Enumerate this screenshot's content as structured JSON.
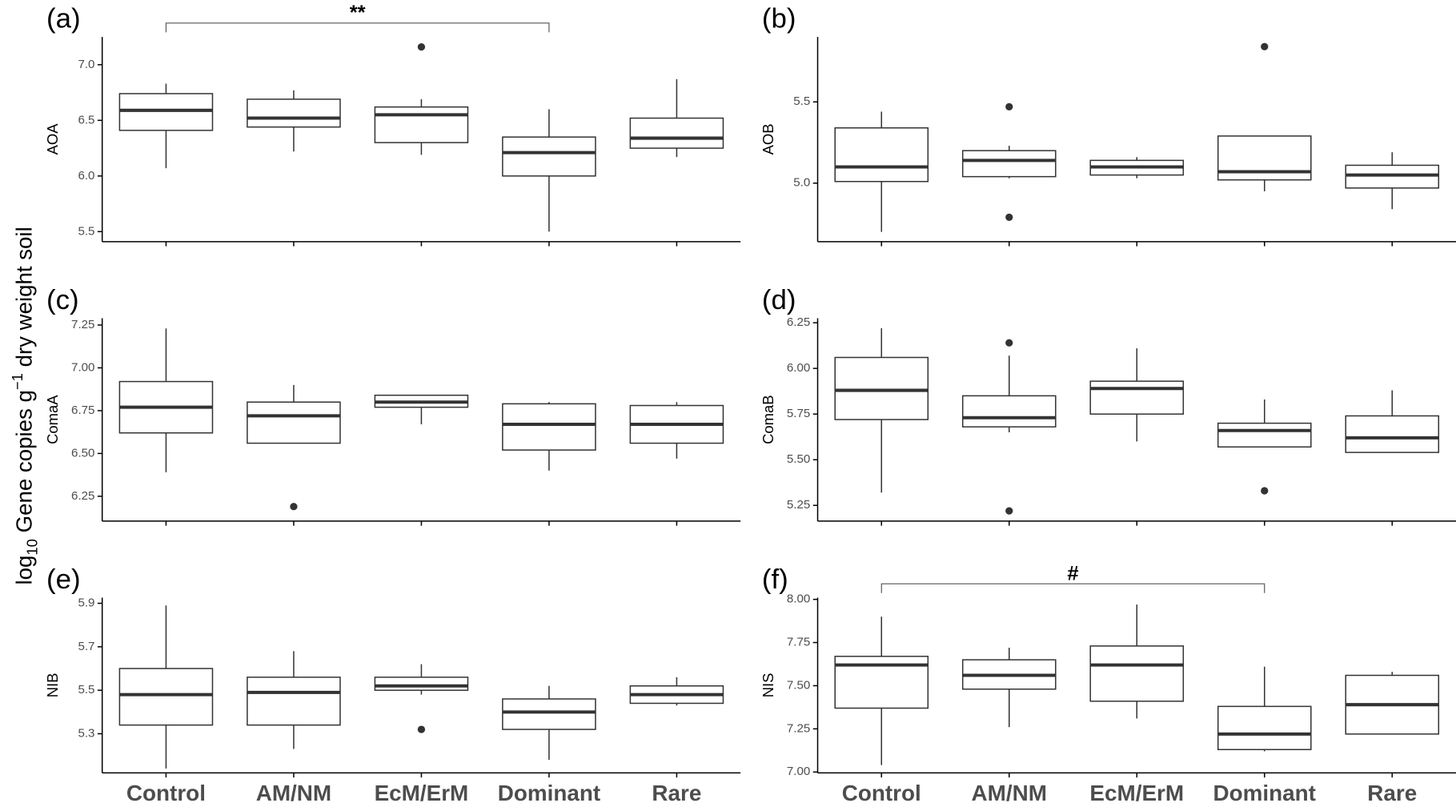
{
  "y_label": {
    "log": "log",
    "sub": "10",
    "main": " Gene copies g",
    "sup": "−1",
    "rest": " dry weight soil"
  },
  "chart_data": [
    {
      "type": "box",
      "panel_label": "(a)",
      "y_label": "AOA",
      "ylim": [
        5.41,
        7.25
      ],
      "yticks": [
        5.5,
        {
          "value": 6.0,
          "label": "6.0"
        },
        6.5,
        {
          "value": 7.0,
          "label": "7.0"
        }
      ],
      "annotation": {
        "text": "**",
        "between": [
          0,
          3
        ]
      },
      "boxes": [
        {
          "whislo": 6.07,
          "q1": 6.41,
          "med": 6.59,
          "q3": 6.74,
          "whishi": 6.83,
          "outliers": []
        },
        {
          "whislo": 6.22,
          "q1": 6.44,
          "med": 6.52,
          "q3": 6.69,
          "whishi": 6.77,
          "outliers": []
        },
        {
          "whislo": 6.19,
          "q1": 6.3,
          "med": 6.55,
          "q3": 6.62,
          "whishi": 6.69,
          "outliers": [
            7.16
          ]
        },
        {
          "whislo": 5.5,
          "q1": 6.0,
          "med": 6.21,
          "q3": 6.35,
          "whishi": 6.6,
          "outliers": []
        },
        {
          "whislo": 6.17,
          "q1": 6.25,
          "med": 6.34,
          "q3": 6.52,
          "whishi": 6.87,
          "outliers": []
        }
      ]
    },
    {
      "type": "box",
      "panel_label": "(b)",
      "y_label": "AOB",
      "ylim": [
        4.64,
        5.9
      ],
      "yticks": [
        {
          "value": 5.0,
          "label": "5.0"
        },
        5.5
      ],
      "boxes": [
        {
          "whislo": 4.7,
          "q1": 5.01,
          "med": 5.1,
          "q3": 5.34,
          "whishi": 5.44,
          "outliers": []
        },
        {
          "whislo": 5.03,
          "q1": 5.04,
          "med": 5.14,
          "q3": 5.2,
          "whishi": 5.23,
          "outliers": [
            5.47,
            4.79
          ]
        },
        {
          "whislo": 5.03,
          "q1": 5.05,
          "med": 5.1,
          "q3": 5.14,
          "whishi": 5.16,
          "outliers": []
        },
        {
          "whislo": 4.95,
          "q1": 5.02,
          "med": 5.07,
          "q3": 5.29,
          "whishi": 5.29,
          "outliers": [
            5.84
          ]
        },
        {
          "whislo": 4.84,
          "q1": 4.97,
          "med": 5.05,
          "q3": 5.11,
          "whishi": 5.19,
          "outliers": []
        }
      ]
    },
    {
      "type": "box",
      "panel_label": "(c)",
      "y_label": "ComaA",
      "ylim": [
        6.105,
        7.29
      ],
      "yticks": [
        6.25,
        {
          "value": 6.5,
          "label": "6.50"
        },
        6.75,
        {
          "value": 7.0,
          "label": "7.00"
        },
        7.25
      ],
      "boxes": [
        {
          "whislo": 6.39,
          "q1": 6.62,
          "med": 6.77,
          "q3": 6.92,
          "whishi": 7.23,
          "outliers": []
        },
        {
          "whislo": 6.56,
          "q1": 6.56,
          "med": 6.72,
          "q3": 6.8,
          "whishi": 6.9,
          "outliers": [
            6.19
          ]
        },
        {
          "whislo": 6.67,
          "q1": 6.77,
          "med": 6.8,
          "q3": 6.84,
          "whishi": 6.84,
          "outliers": []
        },
        {
          "whislo": 6.4,
          "q1": 6.52,
          "med": 6.67,
          "q3": 6.79,
          "whishi": 6.8,
          "outliers": []
        },
        {
          "whislo": 6.47,
          "q1": 6.56,
          "med": 6.67,
          "q3": 6.78,
          "whishi": 6.8,
          "outliers": []
        }
      ]
    },
    {
      "type": "box",
      "panel_label": "(d)",
      "y_label": "ComaB",
      "ylim": [
        5.164,
        6.275
      ],
      "yticks": [
        5.25,
        {
          "value": 5.5,
          "label": "5.50"
        },
        5.75,
        {
          "value": 6.0,
          "label": "6.00"
        },
        6.25
      ],
      "boxes": [
        {
          "whislo": 5.32,
          "q1": 5.72,
          "med": 5.88,
          "q3": 6.06,
          "whishi": 6.22,
          "outliers": []
        },
        {
          "whislo": 5.65,
          "q1": 5.68,
          "med": 5.73,
          "q3": 5.85,
          "whishi": 6.07,
          "outliers": [
            6.14,
            5.22
          ]
        },
        {
          "whislo": 5.6,
          "q1": 5.75,
          "med": 5.89,
          "q3": 5.93,
          "whishi": 6.11,
          "outliers": []
        },
        {
          "whislo": 5.57,
          "q1": 5.57,
          "med": 5.66,
          "q3": 5.7,
          "whishi": 5.83,
          "outliers": [
            5.33
          ]
        },
        {
          "whislo": 5.54,
          "q1": 5.54,
          "med": 5.62,
          "q3": 5.74,
          "whishi": 5.88,
          "outliers": []
        }
      ]
    },
    {
      "type": "box",
      "panel_label": "(e)",
      "y_label": "NIB",
      "ylim": [
        5.12,
        5.926
      ],
      "yticks": [
        5.3,
        5.5,
        5.7,
        5.9
      ],
      "categories": [
        "Control",
        "AM/NM",
        "EcM/ErM",
        "Dominant",
        "Rare"
      ],
      "boxes": [
        {
          "whislo": 5.14,
          "q1": 5.34,
          "med": 5.48,
          "q3": 5.6,
          "whishi": 5.89,
          "outliers": []
        },
        {
          "whislo": 5.23,
          "q1": 5.34,
          "med": 5.49,
          "q3": 5.56,
          "whishi": 5.68,
          "outliers": []
        },
        {
          "whislo": 5.48,
          "q1": 5.5,
          "med": 5.52,
          "q3": 5.56,
          "whishi": 5.62,
          "outliers": [
            5.32
          ]
        },
        {
          "whislo": 5.18,
          "q1": 5.32,
          "med": 5.4,
          "q3": 5.46,
          "whishi": 5.52,
          "outliers": []
        },
        {
          "whislo": 5.43,
          "q1": 5.44,
          "med": 5.48,
          "q3": 5.52,
          "whishi": 5.56,
          "outliers": []
        }
      ]
    },
    {
      "type": "box",
      "panel_label": "(f)",
      "y_label": "NIS",
      "ylim": [
        6.995,
        8.01
      ],
      "yticks": [
        {
          "value": 7.0,
          "label": "7.00"
        },
        7.25,
        {
          "value": 7.5,
          "label": "7.50"
        },
        7.75,
        {
          "value": 8.0,
          "label": "8.00"
        }
      ],
      "annotation": {
        "text": "#",
        "between": [
          0,
          3
        ]
      },
      "categories": [
        "Control",
        "AM/NM",
        "EcM/ErM",
        "Dominant",
        "Rare"
      ],
      "boxes": [
        {
          "whislo": 7.04,
          "q1": 7.37,
          "med": 7.62,
          "q3": 7.67,
          "whishi": 7.9,
          "outliers": []
        },
        {
          "whislo": 7.26,
          "q1": 7.48,
          "med": 7.56,
          "q3": 7.65,
          "whishi": 7.72,
          "outliers": []
        },
        {
          "whislo": 7.31,
          "q1": 7.41,
          "med": 7.62,
          "q3": 7.73,
          "whishi": 7.97,
          "outliers": []
        },
        {
          "whislo": 7.12,
          "q1": 7.13,
          "med": 7.22,
          "q3": 7.38,
          "whishi": 7.61,
          "outliers": []
        },
        {
          "whislo": 7.22,
          "q1": 7.22,
          "med": 7.39,
          "q3": 7.56,
          "whishi": 7.58,
          "outliers": []
        }
      ]
    }
  ]
}
